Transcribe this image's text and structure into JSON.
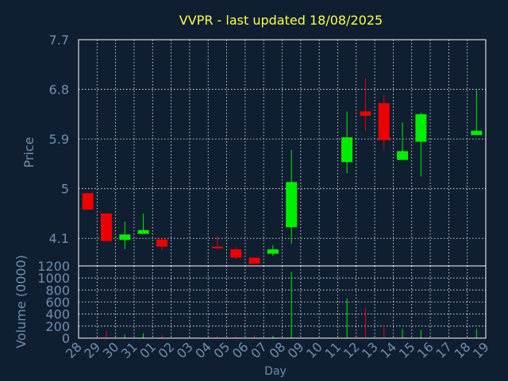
{
  "chart_data": {
    "type": "candlestick",
    "title": "VVPR - last updated 18/08/2025",
    "xlabel": "Day",
    "price_panel": {
      "ylabel": "Price",
      "ylim": [
        3.6,
        7.7
      ],
      "ticks": [
        4.1,
        5,
        5.9,
        6.8,
        7.7
      ],
      "tick_labels": [
        "4.1",
        "5",
        "5.9",
        "6.8",
        "7.7"
      ]
    },
    "volume_panel": {
      "ylabel": "Volume (0000)",
      "ylim": [
        0,
        1200
      ],
      "ticks": [
        0,
        200,
        400,
        600,
        800,
        1000,
        1200
      ],
      "tick_labels": [
        "0",
        "200",
        "400",
        "600",
        "800",
        "1000",
        "1200"
      ]
    },
    "x_tick_labels": [
      "28",
      "29",
      "30",
      "31",
      "01",
      "02",
      "03",
      "04",
      "05",
      "06",
      "07",
      "08",
      "09",
      "10",
      "11",
      "12",
      "13",
      "14",
      "15",
      "16",
      "17",
      "18",
      "19"
    ],
    "grid": true,
    "colors": {
      "background": "#0f1e30",
      "title": "#ffff44",
      "axis_text": "#6f8fb0",
      "grid": "#ffffff",
      "up": "#00ee00",
      "down": "#ee0000"
    },
    "candles": [
      {
        "day": "28",
        "open": 4.92,
        "high": 4.92,
        "low": 4.62,
        "close": 4.62,
        "volume": 0
      },
      {
        "day": "29",
        "open": 4.55,
        "high": 4.55,
        "low": 4.05,
        "close": 4.05,
        "volume": 120
      },
      {
        "day": "30",
        "open": 4.07,
        "high": 4.4,
        "low": 3.9,
        "close": 4.17,
        "volume": 60
      },
      {
        "day": "31",
        "open": 4.18,
        "high": 4.55,
        "low": 4.18,
        "close": 4.25,
        "volume": 80
      },
      {
        "day": "01",
        "open": 4.08,
        "high": 4.1,
        "low": 3.88,
        "close": 3.95,
        "volume": 60
      },
      {
        "day": "04",
        "open": 3.95,
        "high": 4.15,
        "low": 3.9,
        "close": 3.93,
        "volume": 40
      },
      {
        "day": "05",
        "open": 3.9,
        "high": 3.95,
        "low": 3.72,
        "close": 3.75,
        "volume": 50
      },
      {
        "day": "06",
        "open": 3.75,
        "high": 3.75,
        "low": 3.64,
        "close": 3.64,
        "volume": 50
      },
      {
        "day": "07",
        "open": 3.82,
        "high": 3.98,
        "low": 3.78,
        "close": 3.9,
        "volume": 40
      },
      {
        "day": "08",
        "open": 4.3,
        "high": 5.7,
        "low": 4.0,
        "close": 5.12,
        "volume": 1100
      },
      {
        "day": "11",
        "open": 5.48,
        "high": 6.4,
        "low": 5.28,
        "close": 5.93,
        "volume": 660
      },
      {
        "day": "12",
        "open": 6.4,
        "high": 7.0,
        "low": 6.05,
        "close": 6.32,
        "volume": 500
      },
      {
        "day": "13",
        "open": 6.55,
        "high": 6.7,
        "low": 5.7,
        "close": 5.88,
        "volume": 220
      },
      {
        "day": "14",
        "open": 5.52,
        "high": 6.2,
        "low": 5.52,
        "close": 5.68,
        "volume": 150
      },
      {
        "day": "15",
        "open": 5.85,
        "high": 6.38,
        "low": 5.22,
        "close": 6.35,
        "volume": 140
      },
      {
        "day": "18",
        "open": 5.97,
        "high": 6.8,
        "low": 5.97,
        "close": 6.05,
        "volume": 150
      }
    ]
  }
}
